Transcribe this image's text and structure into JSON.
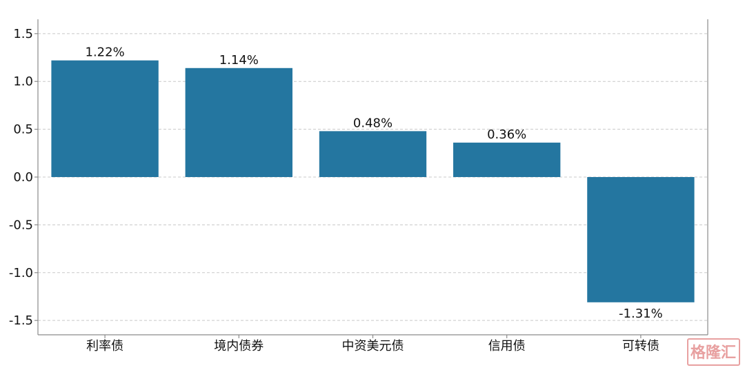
{
  "chart_data": {
    "type": "bar",
    "categories": [
      "利率债",
      "境内债券",
      "中资美元债",
      "信用债",
      "可转债"
    ],
    "values": [
      1.22,
      1.14,
      0.48,
      0.36,
      -1.31
    ],
    "data_labels": [
      "1.22%",
      "1.14%",
      "0.48%",
      "0.36%",
      "-1.31%"
    ],
    "yticks": [
      -1.5,
      -1.0,
      -0.5,
      0.0,
      0.5,
      1.0,
      1.5
    ],
    "ytick_labels": [
      "-1.5",
      "-1.0",
      "-0.5",
      "0.0",
      "0.5",
      "1.0",
      "1.5"
    ],
    "ylim": [
      -1.65,
      1.65
    ],
    "title": "",
    "xlabel": "",
    "ylabel": "",
    "grid": "horizontal-dashed",
    "bar_color": "#2476a0"
  },
  "watermark": {
    "text": "格隆汇",
    "color": "#e8a0a0"
  }
}
